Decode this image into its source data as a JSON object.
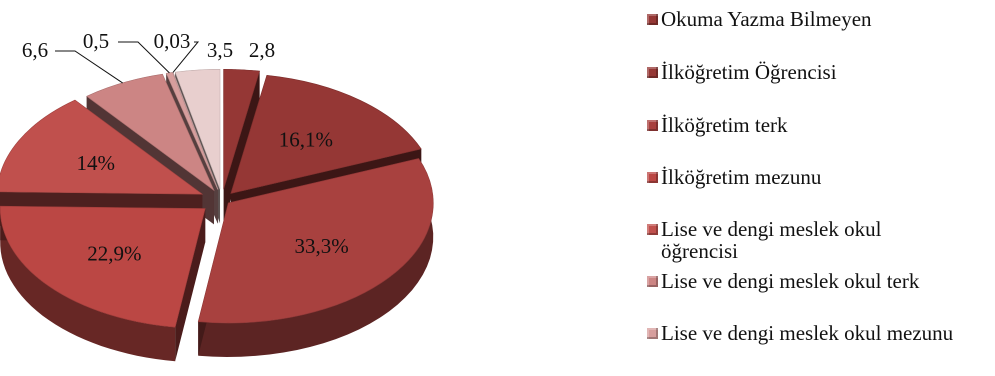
{
  "chart_data": {
    "type": "pie",
    "title": "",
    "slices": [
      {
        "name": "Okuma Yazma Bilmeyen",
        "value": 2.8,
        "label": "2,8",
        "color": "#953735"
      },
      {
        "name": "İlköğretim Öğrencisi",
        "value": 16.1,
        "label": "16,1%",
        "color": "#953735"
      },
      {
        "name": "İlköğretim terk",
        "value": 33.3,
        "label": "33,3%",
        "color": "#A8413F"
      },
      {
        "name": "İlköğretim mezunu",
        "value": 22.9,
        "label": "22,9%",
        "color": "#BB4744"
      },
      {
        "name": "Lise ve dengi meslek okul öğrencisi",
        "value": 14,
        "label": "14%",
        "color": "#C0504D"
      },
      {
        "name": "Lise ve dengi meslek okul terk",
        "value": 6.6,
        "label": "6,6",
        "color": "#CC8584"
      },
      {
        "name": "Lise ve dengi meslek okul mezunu",
        "value": 0.5,
        "label": "0,5",
        "color": "#D79E9D"
      },
      {
        "name": "",
        "value": 0.03,
        "label": "0,03",
        "color": "#E0B8B7"
      },
      {
        "name": "",
        "value": 3.5,
        "label": "3,5",
        "color": "#E8CFCE"
      }
    ],
    "legend_position": "right",
    "style": "3d-exploded-pie"
  },
  "legend": {
    "items": [
      {
        "label": "Okuma Yazma Bilmeyen",
        "color": "#953735"
      },
      {
        "label": "İlköğretim Öğrencisi",
        "color": "#953735"
      },
      {
        "label": "İlköğretim terk",
        "color": "#A8413F"
      },
      {
        "label": "İlköğretim mezunu",
        "color": "#BB4744"
      },
      {
        "label": "Lise ve dengi meslek okul öğrencisi",
        "color": "#C0504D"
      },
      {
        "label": "Lise ve dengi meslek okul terk",
        "color": "#CC8584"
      },
      {
        "label": "Lise ve dengi meslek okul mezunu",
        "color": "#D79E9D"
      }
    ]
  }
}
